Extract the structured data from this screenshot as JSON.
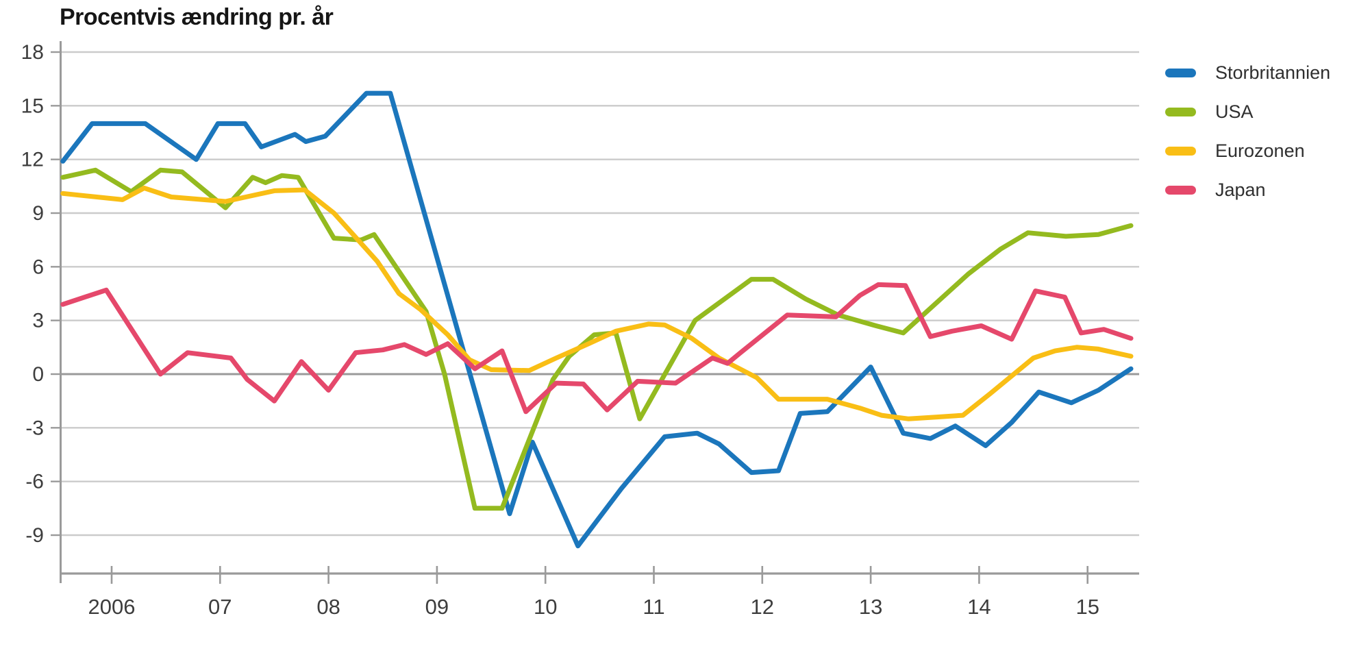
{
  "title": "Procentvis ændring pr. år",
  "colors": {
    "storbritannien": "#1B76BC",
    "usa": "#94BA1F",
    "eurozonen": "#F9BE15",
    "japan": "#E5486B",
    "gridline": "#cbcbcb",
    "zeroline": "#9a9a9a",
    "axis": "#9a9a9a",
    "tick_text": "#3d3d3d",
    "title_text": "#161616"
  },
  "legend": [
    {
      "label": "Storbritannien",
      "color": "#1B76BC"
    },
    {
      "label": "USA",
      "color": "#94BA1F"
    },
    {
      "label": "Eurozonen",
      "color": "#F9BE15"
    },
    {
      "label": "Japan",
      "color": "#E5486B"
    }
  ],
  "chart_data": {
    "type": "line",
    "title": "Procentvis ændring pr. år",
    "xlabel": "",
    "ylabel": "Procentvis ændring pr. år",
    "grid": true,
    "legend_position": "right",
    "ylim": [
      -11,
      18
    ],
    "xlim": [
      2005.45,
      2015.45
    ],
    "y_ticks": [
      18,
      15,
      12,
      9,
      6,
      3,
      0,
      -3,
      -6,
      -9
    ],
    "x_ticks": [
      {
        "t": 2006,
        "label": "2006"
      },
      {
        "t": 2007,
        "label": "07"
      },
      {
        "t": 2008,
        "label": "08"
      },
      {
        "t": 2009,
        "label": "09"
      },
      {
        "t": 2010,
        "label": "10"
      },
      {
        "t": 2011,
        "label": "11"
      },
      {
        "t": 2012,
        "label": "12"
      },
      {
        "t": 2013,
        "label": "13"
      },
      {
        "t": 2014,
        "label": "14"
      },
      {
        "t": 2015,
        "label": "15"
      }
    ],
    "series": [
      {
        "name": "Storbritannien",
        "color": "#1B76BC",
        "points": [
          [
            2005.55,
            11.9
          ],
          [
            2005.82,
            14.0
          ],
          [
            2006.31,
            14.0
          ],
          [
            2006.78,
            12.0
          ],
          [
            2006.98,
            14.0
          ],
          [
            2007.23,
            14.0
          ],
          [
            2007.38,
            12.7
          ],
          [
            2007.69,
            13.4
          ],
          [
            2007.79,
            13.0
          ],
          [
            2007.97,
            13.3
          ],
          [
            2008.35,
            15.7
          ],
          [
            2008.57,
            15.7
          ],
          [
            2009.67,
            -7.8
          ],
          [
            2009.88,
            -3.8
          ],
          [
            2010.3,
            -9.6
          ],
          [
            2010.7,
            -6.4
          ],
          [
            2011.1,
            -3.5
          ],
          [
            2011.4,
            -3.3
          ],
          [
            2011.6,
            -3.9
          ],
          [
            2011.9,
            -5.5
          ],
          [
            2012.15,
            -5.4
          ],
          [
            2012.35,
            -2.2
          ],
          [
            2012.6,
            -2.1
          ],
          [
            2013.0,
            0.4
          ],
          [
            2013.3,
            -3.3
          ],
          [
            2013.55,
            -3.6
          ],
          [
            2013.78,
            -2.9
          ],
          [
            2014.06,
            -4.0
          ],
          [
            2014.3,
            -2.7
          ],
          [
            2014.55,
            -1.0
          ],
          [
            2014.85,
            -1.6
          ],
          [
            2015.1,
            -0.9
          ],
          [
            2015.4,
            0.3
          ]
        ]
      },
      {
        "name": "USA",
        "color": "#94BA1F",
        "points": [
          [
            2005.55,
            11.0
          ],
          [
            2005.85,
            11.4
          ],
          [
            2006.18,
            10.2
          ],
          [
            2006.45,
            11.4
          ],
          [
            2006.65,
            11.3
          ],
          [
            2007.05,
            9.3
          ],
          [
            2007.3,
            11.0
          ],
          [
            2007.42,
            10.7
          ],
          [
            2007.57,
            11.1
          ],
          [
            2007.72,
            11.0
          ],
          [
            2008.05,
            7.6
          ],
          [
            2008.3,
            7.5
          ],
          [
            2008.42,
            7.8
          ],
          [
            2008.9,
            3.5
          ],
          [
            2009.07,
            0.0
          ],
          [
            2009.35,
            -7.5
          ],
          [
            2009.6,
            -7.5
          ],
          [
            2010.07,
            -0.3
          ],
          [
            2010.22,
            1.0
          ],
          [
            2010.45,
            2.2
          ],
          [
            2010.65,
            2.3
          ],
          [
            2010.87,
            -2.5
          ],
          [
            2011.38,
            3.0
          ],
          [
            2011.9,
            5.3
          ],
          [
            2012.1,
            5.3
          ],
          [
            2012.4,
            4.2
          ],
          [
            2012.7,
            3.3
          ],
          [
            2013.05,
            2.7
          ],
          [
            2013.3,
            2.3
          ],
          [
            2013.9,
            5.6
          ],
          [
            2014.2,
            7.0
          ],
          [
            2014.45,
            7.9
          ],
          [
            2014.8,
            7.7
          ],
          [
            2015.1,
            7.8
          ],
          [
            2015.4,
            8.3
          ]
        ]
      },
      {
        "name": "Eurozonen",
        "color": "#F9BE15",
        "points": [
          [
            2005.55,
            10.1
          ],
          [
            2006.1,
            9.75
          ],
          [
            2006.3,
            10.4
          ],
          [
            2006.55,
            9.9
          ],
          [
            2007.05,
            9.65
          ],
          [
            2007.5,
            10.25
          ],
          [
            2007.78,
            10.3
          ],
          [
            2008.05,
            9.0
          ],
          [
            2008.45,
            6.3
          ],
          [
            2008.65,
            4.5
          ],
          [
            2008.85,
            3.6
          ],
          [
            2009.1,
            2.2
          ],
          [
            2009.3,
            0.8
          ],
          [
            2009.5,
            0.25
          ],
          [
            2009.85,
            0.2
          ],
          [
            2010.1,
            0.9
          ],
          [
            2010.4,
            1.7
          ],
          [
            2010.65,
            2.4
          ],
          [
            2010.95,
            2.8
          ],
          [
            2011.1,
            2.75
          ],
          [
            2011.35,
            2.0
          ],
          [
            2011.6,
            0.9
          ],
          [
            2011.95,
            -0.2
          ],
          [
            2012.15,
            -1.4
          ],
          [
            2012.6,
            -1.4
          ],
          [
            2012.9,
            -1.9
          ],
          [
            2013.1,
            -2.3
          ],
          [
            2013.35,
            -2.5
          ],
          [
            2013.6,
            -2.4
          ],
          [
            2013.85,
            -2.3
          ],
          [
            2014.1,
            -1.1
          ],
          [
            2014.32,
            0.0
          ],
          [
            2014.5,
            0.9
          ],
          [
            2014.7,
            1.3
          ],
          [
            2014.9,
            1.5
          ],
          [
            2015.1,
            1.4
          ],
          [
            2015.4,
            1.0
          ]
        ]
      },
      {
        "name": "Japan",
        "color": "#E5486B",
        "points": [
          [
            2005.55,
            3.9
          ],
          [
            2005.95,
            4.7
          ],
          [
            2006.45,
            0.0
          ],
          [
            2006.7,
            1.2
          ],
          [
            2007.1,
            0.9
          ],
          [
            2007.25,
            -0.3
          ],
          [
            2007.5,
            -1.5
          ],
          [
            2007.75,
            0.7
          ],
          [
            2008.0,
            -0.9
          ],
          [
            2008.25,
            1.2
          ],
          [
            2008.5,
            1.35
          ],
          [
            2008.7,
            1.65
          ],
          [
            2008.9,
            1.1
          ],
          [
            2009.1,
            1.7
          ],
          [
            2009.35,
            0.3
          ],
          [
            2009.6,
            1.3
          ],
          [
            2009.82,
            -2.1
          ],
          [
            2010.1,
            -0.5
          ],
          [
            2010.35,
            -0.55
          ],
          [
            2010.57,
            -2.0
          ],
          [
            2010.85,
            -0.4
          ],
          [
            2011.2,
            -0.5
          ],
          [
            2011.54,
            0.9
          ],
          [
            2011.68,
            0.6
          ],
          [
            2011.8,
            1.2
          ],
          [
            2012.23,
            3.3
          ],
          [
            2012.68,
            3.2
          ],
          [
            2012.9,
            4.4
          ],
          [
            2013.07,
            5.0
          ],
          [
            2013.32,
            4.95
          ],
          [
            2013.55,
            2.1
          ],
          [
            2013.75,
            2.4
          ],
          [
            2014.02,
            2.7
          ],
          [
            2014.3,
            1.95
          ],
          [
            2014.52,
            4.65
          ],
          [
            2014.79,
            4.3
          ],
          [
            2014.94,
            2.3
          ],
          [
            2015.15,
            2.5
          ],
          [
            2015.4,
            2.0
          ]
        ]
      }
    ]
  }
}
